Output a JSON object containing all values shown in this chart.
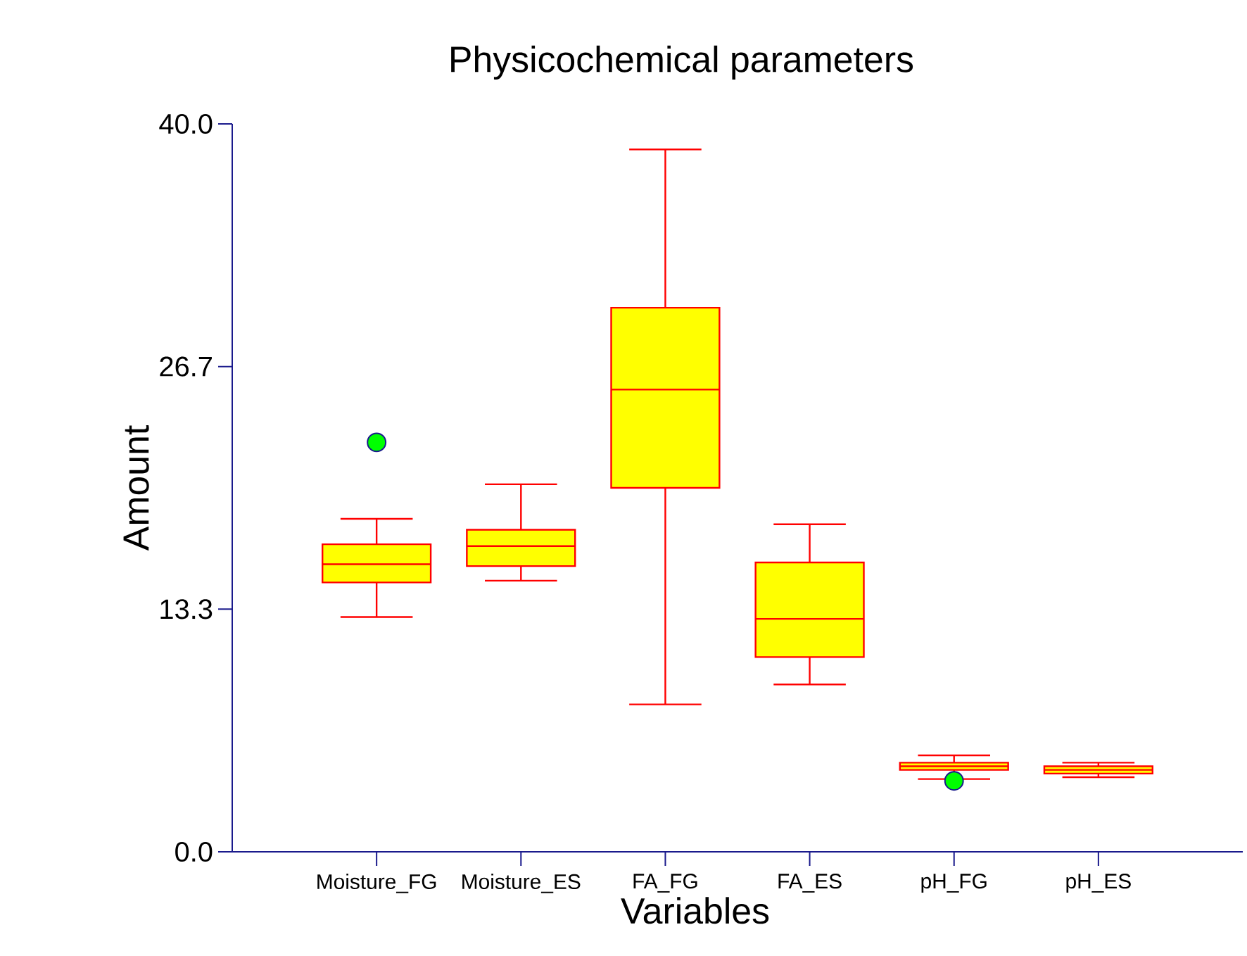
{
  "chart_data": {
    "type": "box",
    "title": "Physicochemical parameters",
    "xlabel": "Variables",
    "ylabel": "Amount",
    "categories": [
      "Moisture_FG",
      "Moisture_ES",
      "FA_FG",
      "FA_ES",
      "pH_FG",
      "pH_ES"
    ],
    "color": "#ffff00",
    "boxes": [
      {
        "low": 12.9,
        "q1": 14.8,
        "median": 15.8,
        "q3": 16.9,
        "high": 18.3,
        "outliers": [
          22.5
        ]
      },
      {
        "low": 14.9,
        "q1": 15.7,
        "median": 16.8,
        "q3": 17.7,
        "high": 20.2
      },
      {
        "low": 8.1,
        "q1": 20.0,
        "median": 25.4,
        "q3": 29.9,
        "high": 38.6
      },
      {
        "low": 9.2,
        "q1": 10.7,
        "median": 12.8,
        "q3": 15.9,
        "high": 18.0
      },
      {
        "low": 4.0,
        "q1": 4.5,
        "median": 4.7,
        "q3": 4.9,
        "high": 5.3,
        "outliers": [
          3.9
        ]
      },
      {
        "low": 4.1,
        "q1": 4.3,
        "median": 4.5,
        "q3": 4.7,
        "high": 4.9
      }
    ],
    "ylim": [
      0,
      40
    ],
    "yticks": [
      {
        "value": 0,
        "label": "0.0"
      },
      {
        "value": 13.333,
        "label": "13.3"
      },
      {
        "value": 26.667,
        "label": "26.7"
      },
      {
        "value": 40,
        "label": "40.0"
      }
    ]
  }
}
